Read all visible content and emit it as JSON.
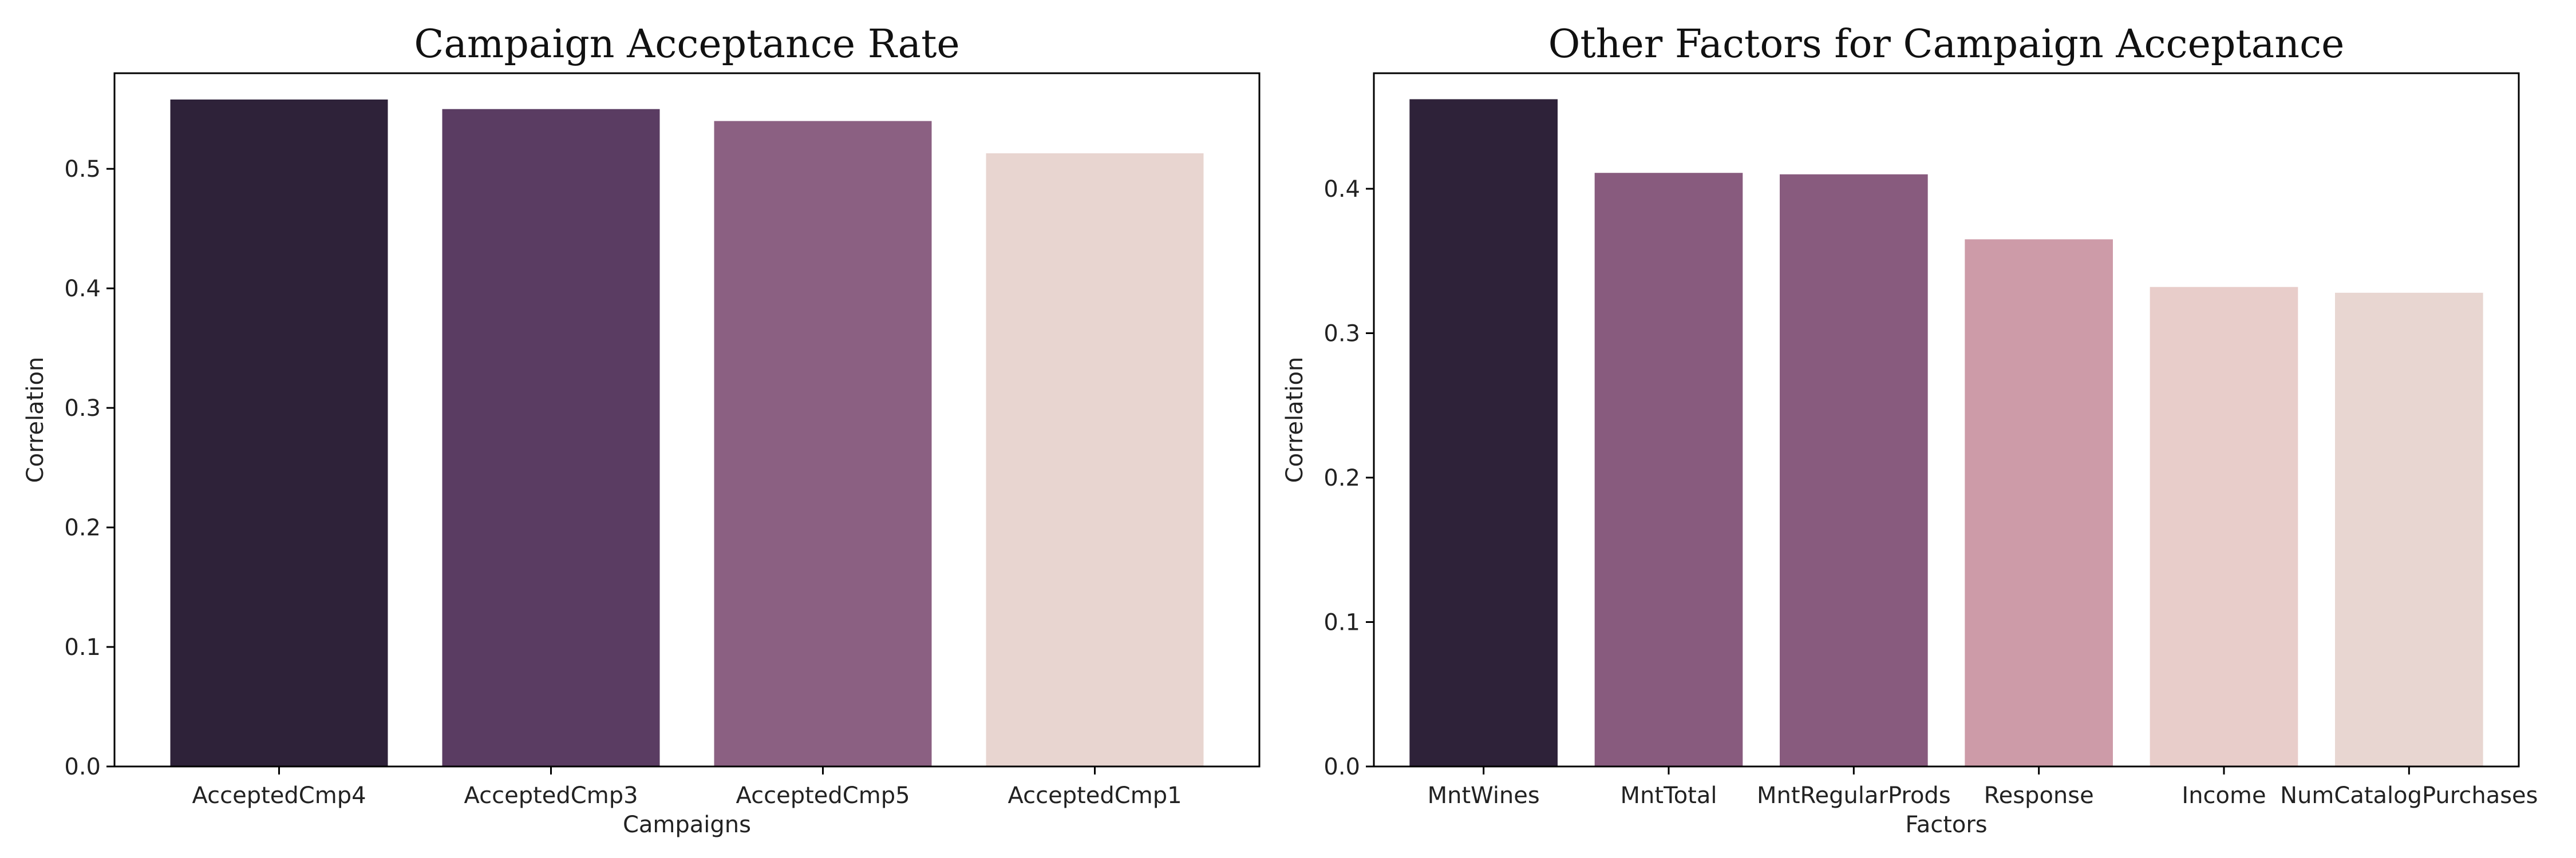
{
  "chart_data": [
    {
      "type": "bar",
      "title": "Campaign Acceptance Rate",
      "xlabel": "Campaigns",
      "ylabel": "Correlation",
      "categories": [
        "AcceptedCmp4",
        "AcceptedCmp3",
        "AcceptedCmp5",
        "AcceptedCmp1"
      ],
      "values": [
        0.558,
        0.55,
        0.54,
        0.513
      ],
      "colors": [
        "#2e2239",
        "#5a3c62",
        "#8b6082",
        "#e8d5d0"
      ],
      "ylim": [
        0,
        0.58
      ],
      "yticks": [
        "0.0",
        "0.1",
        "0.2",
        "0.3",
        "0.4",
        "0.5"
      ],
      "ytick_values": [
        0,
        0.1,
        0.2,
        0.3,
        0.4,
        0.5
      ],
      "grid": false,
      "legend": false
    },
    {
      "type": "bar",
      "title": "Other Factors for Campaign Acceptance",
      "xlabel": "Factors",
      "ylabel": "Correlation",
      "categories": [
        "MntWines",
        "MntTotal",
        "MntRegularProds",
        "Response",
        "Income",
        "NumCatalogPurchases"
      ],
      "values": [
        0.462,
        0.411,
        0.41,
        0.365,
        0.332,
        0.328
      ],
      "colors": [
        "#2e2239",
        "#885b7e",
        "#885b7e",
        "#cd9ba8",
        "#e8cdca",
        "#e8d6d1"
      ],
      "ylim": [
        0,
        0.48
      ],
      "yticks": [
        "0.0",
        "0.1",
        "0.2",
        "0.3",
        "0.4"
      ],
      "ytick_values": [
        0,
        0.1,
        0.2,
        0.3,
        0.4
      ],
      "grid": false,
      "legend": false
    }
  ]
}
